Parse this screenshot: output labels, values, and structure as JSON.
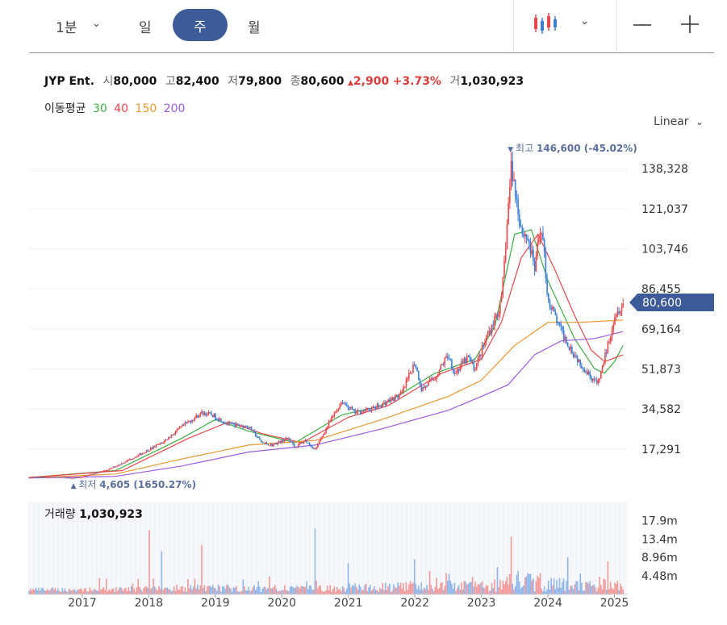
{
  "toolbar": {
    "interval_label": "1분",
    "tab_day": "일",
    "tab_week": "주",
    "tab_month": "월",
    "chart_type_icon": "candlestick-icon",
    "zoom_out_icon": "minus-icon",
    "zoom_in_icon": "plus-icon"
  },
  "quote": {
    "name": "JYP Ent.",
    "open_label": "시",
    "open": "80,000",
    "high_label": "고",
    "high": "82,400",
    "low_label": "저",
    "low": "79,800",
    "close_label": "종",
    "close": "80,600",
    "change": "2,900",
    "change_pct": "+3.73%",
    "volume_label": "거",
    "volume": "1,030,923"
  },
  "moving_average": {
    "label": "이동평균",
    "periods": [
      "30",
      "40",
      "150",
      "200"
    ],
    "colors": [
      "#3cb043",
      "#e8474c",
      "#f0952d",
      "#9b59e6"
    ]
  },
  "scale_label": "Linear",
  "colors": {
    "up": "#e8474c",
    "down": "#3d7fd6",
    "accent": "#3d5a99",
    "volume_up": "#f29a9a",
    "volume_down": "#8fb6ea"
  },
  "chart_data": {
    "type": "candlestick",
    "title": "JYP Ent.",
    "period": "weekly",
    "price_axis": {
      "ticks": [
        17291,
        34582,
        51873,
        69164,
        86455,
        103746,
        121037,
        138328
      ],
      "tick_labels": [
        "17,291",
        "34,582",
        "51,873",
        "69,164",
        "86,455",
        "103,746",
        "121,037",
        "138,328"
      ],
      "ylim": [
        4000,
        145000
      ]
    },
    "x_axis": {
      "ticks": [
        2017,
        2018,
        2019,
        2020,
        2021,
        2022,
        2023,
        2024,
        2025
      ],
      "tick_labels": [
        "2017",
        "2018",
        "2019",
        "2020",
        "2021",
        "2022",
        "2023",
        "2024",
        "2025"
      ],
      "xlim": [
        2016.2,
        2025.2
      ]
    },
    "current_price": 80600,
    "current_price_label": "80,600",
    "high_marker": {
      "label": "최고",
      "value": 146600,
      "date": 2023.42,
      "text": "146,600 (-45.02%)"
    },
    "low_marker": {
      "label": "최저",
      "value": 4605,
      "date": 2016.85,
      "text": "4,605 (1650.27%)"
    },
    "price_path": [
      [
        2016.2,
        5000
      ],
      [
        2016.6,
        5200
      ],
      [
        2016.85,
        4700
      ],
      [
        2017.0,
        5300
      ],
      [
        2017.4,
        8500
      ],
      [
        2017.8,
        14000
      ],
      [
        2018.2,
        20000
      ],
      [
        2018.5,
        27000
      ],
      [
        2018.8,
        33000
      ],
      [
        2018.95,
        32000
      ],
      [
        2019.2,
        28000
      ],
      [
        2019.5,
        27000
      ],
      [
        2019.7,
        20000
      ],
      [
        2019.85,
        19000
      ],
      [
        2020.1,
        22000
      ],
      [
        2020.2,
        18000
      ],
      [
        2020.35,
        21000
      ],
      [
        2020.5,
        17000
      ],
      [
        2020.7,
        28000
      ],
      [
        2020.9,
        38000
      ],
      [
        2021.1,
        33000
      ],
      [
        2021.4,
        35000
      ],
      [
        2021.6,
        38000
      ],
      [
        2021.8,
        41000
      ],
      [
        2022.0,
        55000
      ],
      [
        2022.1,
        43000
      ],
      [
        2022.3,
        48000
      ],
      [
        2022.5,
        58000
      ],
      [
        2022.6,
        50000
      ],
      [
        2022.8,
        57000
      ],
      [
        2022.9,
        52000
      ],
      [
        2023.1,
        67000
      ],
      [
        2023.3,
        80000
      ],
      [
        2023.45,
        140000
      ],
      [
        2023.5,
        130000
      ],
      [
        2023.6,
        112000
      ],
      [
        2023.7,
        108000
      ],
      [
        2023.8,
        95000
      ],
      [
        2023.9,
        115000
      ],
      [
        2024.0,
        82000
      ],
      [
        2024.2,
        68000
      ],
      [
        2024.4,
        58000
      ],
      [
        2024.55,
        52000
      ],
      [
        2024.75,
        45000
      ],
      [
        2024.9,
        62000
      ],
      [
        2025.0,
        75000
      ],
      [
        2025.13,
        80600
      ]
    ],
    "ma_series": [
      {
        "name": "30",
        "points": [
          [
            2016.2,
            5000
          ],
          [
            2017.5,
            8000
          ],
          [
            2018.5,
            22000
          ],
          [
            2019.0,
            30000
          ],
          [
            2019.5,
            25000
          ],
          [
            2020.2,
            20000
          ],
          [
            2020.9,
            32000
          ],
          [
            2021.5,
            36000
          ],
          [
            2022.3,
            50000
          ],
          [
            2022.9,
            56000
          ],
          [
            2023.2,
            70000
          ],
          [
            2023.5,
            110000
          ],
          [
            2023.75,
            112000
          ],
          [
            2024.0,
            90000
          ],
          [
            2024.4,
            65000
          ],
          [
            2024.7,
            52000
          ],
          [
            2024.85,
            50000
          ],
          [
            2025.0,
            55000
          ],
          [
            2025.13,
            62000
          ]
        ]
      },
      {
        "name": "40",
        "points": [
          [
            2016.2,
            5000
          ],
          [
            2017.6,
            8000
          ],
          [
            2018.6,
            22000
          ],
          [
            2019.2,
            29000
          ],
          [
            2019.7,
            24000
          ],
          [
            2020.3,
            20000
          ],
          [
            2021.0,
            31000
          ],
          [
            2021.6,
            36000
          ],
          [
            2022.4,
            50000
          ],
          [
            2023.0,
            56000
          ],
          [
            2023.3,
            72000
          ],
          [
            2023.6,
            100000
          ],
          [
            2023.85,
            110000
          ],
          [
            2024.1,
            95000
          ],
          [
            2024.4,
            75000
          ],
          [
            2024.65,
            60000
          ],
          [
            2024.85,
            55000
          ],
          [
            2025.13,
            58000
          ]
        ]
      },
      {
        "name": "150",
        "points": [
          [
            2016.2,
            4800
          ],
          [
            2017.5,
            6500
          ],
          [
            2018.5,
            13000
          ],
          [
            2019.5,
            19000
          ],
          [
            2020.5,
            21000
          ],
          [
            2021.5,
            30000
          ],
          [
            2022.5,
            40000
          ],
          [
            2023.0,
            47000
          ],
          [
            2023.5,
            62000
          ],
          [
            2024.0,
            72000
          ],
          [
            2024.5,
            72000
          ],
          [
            2025.13,
            73000
          ]
        ]
      },
      {
        "name": "200",
        "points": [
          [
            2016.2,
            4800
          ],
          [
            2017.5,
            5500
          ],
          [
            2018.5,
            10000
          ],
          [
            2019.5,
            16000
          ],
          [
            2020.5,
            19000
          ],
          [
            2021.5,
            26000
          ],
          [
            2022.5,
            34000
          ],
          [
            2023.0,
            40000
          ],
          [
            2023.4,
            45000
          ],
          [
            2023.8,
            58000
          ],
          [
            2024.2,
            64000
          ],
          [
            2024.7,
            65000
          ],
          [
            2025.13,
            68000
          ]
        ]
      }
    ],
    "volume_panel": {
      "label": "거래량",
      "value": "1,030,923",
      "ticks": [
        4.48,
        8.96,
        13.4,
        17.9
      ],
      "tick_labels": [
        "4.48m",
        "8.96m",
        "13.4m",
        "17.9m"
      ],
      "ylim": [
        0,
        22.5
      ],
      "spikes": [
        [
          2018.0,
          15.6
        ],
        [
          2018.2,
          10.5
        ],
        [
          2018.8,
          12.0
        ],
        [
          2020.5,
          16.0
        ],
        [
          2021.0,
          7.0
        ],
        [
          2022.0,
          8.5
        ],
        [
          2023.45,
          14.0
        ],
        [
          2024.3,
          9.0
        ],
        [
          2024.9,
          8.0
        ]
      ]
    }
  }
}
